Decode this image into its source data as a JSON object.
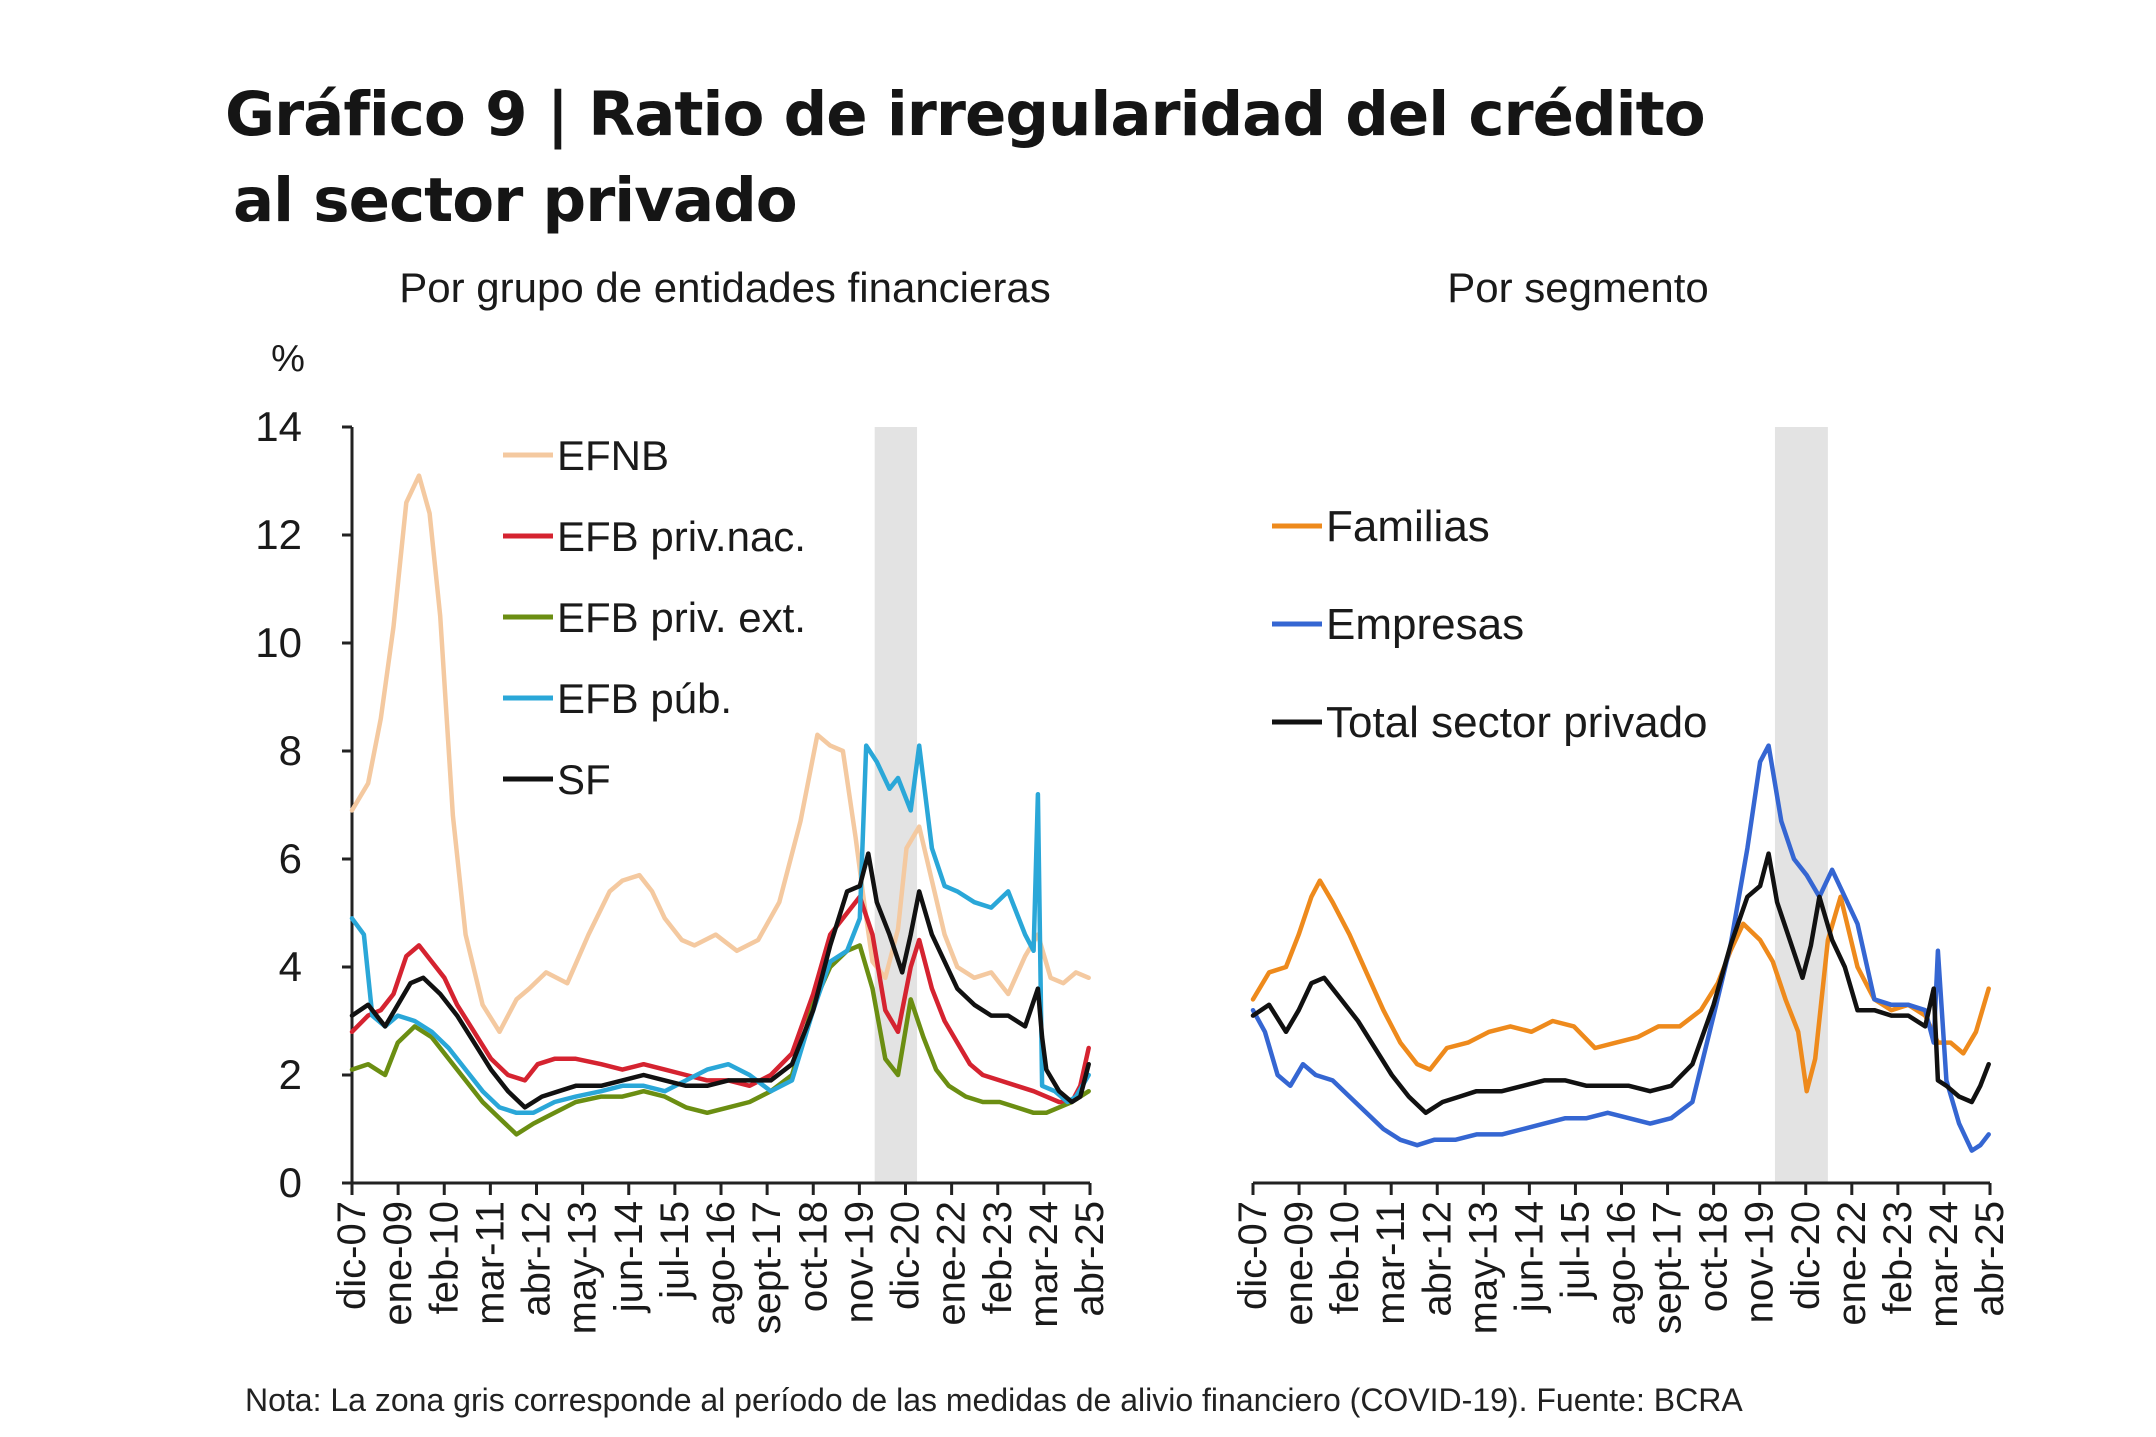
{
  "title_line1": "Gráfico 9 | Ratio de irregularidad del crédito",
  "title_line2": "al sector privado",
  "note": "Nota: La zona gris corresponde al período de las medidas de alivio financiero (COVID-19). Fuente: BCRA",
  "chart_data": [
    {
      "type": "line",
      "subtitle": "Por grupo de entidades financieras",
      "ylabel": "%",
      "ylim": [
        0,
        14
      ],
      "yticks": [
        0,
        2,
        4,
        6,
        8,
        10,
        12,
        14
      ],
      "xlim": [
        "dic-07",
        "abr-25"
      ],
      "x_ticklabels": [
        "dic-07",
        "ene-09",
        "feb-10",
        "mar-11",
        "abr-12",
        "may-13",
        "jun-14",
        "jul-15",
        "ago-16",
        "sept-17",
        "oct-18",
        "nov-19",
        "dic-20",
        "ene-22",
        "feb-23",
        "mar-24",
        "abr-25"
      ],
      "shaded_period": {
        "start": 2020.25,
        "end": 2021.25,
        "color": "#e3e3e3"
      },
      "legend_position": "top-left",
      "series": [
        {
          "name": "EFNB",
          "color": "#f4c9a0",
          "x": [
            2007.92,
            2008.3,
            2008.6,
            2008.9,
            2009.2,
            2009.5,
            2009.75,
            2010.0,
            2010.3,
            2010.6,
            2011.0,
            2011.4,
            2011.8,
            2012.1,
            2012.5,
            2013.0,
            2013.5,
            2014.0,
            2014.3,
            2014.7,
            2015.0,
            2015.3,
            2015.7,
            2016.0,
            2016.5,
            2017.0,
            2017.5,
            2018.0,
            2018.5,
            2018.9,
            2019.2,
            2019.5,
            2019.8,
            2020.0,
            2020.2,
            2020.5,
            2020.8,
            2021.0,
            2021.3,
            2021.6,
            2021.9,
            2022.2,
            2022.6,
            2023.0,
            2023.4,
            2023.8,
            2024.1,
            2024.4,
            2024.7,
            2025.0,
            2025.3
          ],
          "y": [
            6.9,
            7.4,
            8.6,
            10.3,
            12.6,
            13.1,
            12.4,
            10.5,
            6.8,
            4.6,
            3.3,
            2.8,
            3.4,
            3.6,
            3.9,
            3.7,
            4.6,
            5.4,
            5.6,
            5.7,
            5.4,
            4.9,
            4.5,
            4.4,
            4.6,
            4.3,
            4.5,
            5.2,
            6.7,
            8.3,
            8.1,
            8.0,
            6.4,
            5.2,
            4.1,
            3.8,
            4.7,
            6.2,
            6.6,
            5.6,
            4.6,
            4.0,
            3.8,
            3.9,
            3.5,
            4.2,
            4.6,
            3.8,
            3.7,
            3.9,
            3.8
          ]
        },
        {
          "name": "EFB priv.nac.",
          "color": "#d52330",
          "x": [
            2007.92,
            2008.3,
            2008.6,
            2008.9,
            2009.2,
            2009.5,
            2009.8,
            2010.1,
            2010.4,
            2010.8,
            2011.2,
            2011.6,
            2012.0,
            2012.3,
            2012.7,
            2013.2,
            2013.8,
            2014.3,
            2014.8,
            2015.3,
            2015.8,
            2016.3,
            2016.8,
            2017.3,
            2017.8,
            2018.3,
            2018.8,
            2019.2,
            2019.6,
            2019.9,
            2020.2,
            2020.5,
            2020.8,
            2021.1,
            2021.3,
            2021.6,
            2021.9,
            2022.2,
            2022.5,
            2022.8,
            2023.2,
            2023.6,
            2024.0,
            2024.3,
            2024.6,
            2024.9,
            2025.1,
            2025.3
          ],
          "y": [
            2.8,
            3.1,
            3.2,
            3.5,
            4.2,
            4.4,
            4.1,
            3.8,
            3.3,
            2.8,
            2.3,
            2.0,
            1.9,
            2.2,
            2.3,
            2.3,
            2.2,
            2.1,
            2.2,
            2.1,
            2.0,
            1.9,
            1.9,
            1.8,
            2.0,
            2.4,
            3.5,
            4.6,
            5.0,
            5.3,
            4.6,
            3.2,
            2.8,
            4.0,
            4.5,
            3.6,
            3.0,
            2.6,
            2.2,
            2.0,
            1.9,
            1.8,
            1.7,
            1.6,
            1.5,
            1.5,
            1.8,
            2.5
          ]
        },
        {
          "name": "EFB priv. ext.",
          "color": "#6b8e12",
          "x": [
            2007.92,
            2008.3,
            2008.7,
            2009.0,
            2009.4,
            2009.8,
            2010.2,
            2010.6,
            2011.0,
            2011.4,
            2011.8,
            2012.2,
            2012.7,
            2013.2,
            2013.8,
            2014.3,
            2014.8,
            2015.3,
            2015.8,
            2016.3,
            2016.8,
            2017.3,
            2017.8,
            2018.3,
            2018.8,
            2019.2,
            2019.6,
            2019.9,
            2020.2,
            2020.5,
            2020.8,
            2021.1,
            2021.4,
            2021.7,
            2022.0,
            2022.4,
            2022.8,
            2023.2,
            2023.6,
            2024.0,
            2024.3,
            2024.6,
            2024.9,
            2025.1,
            2025.3
          ],
          "y": [
            2.1,
            2.2,
            2.0,
            2.6,
            2.9,
            2.7,
            2.3,
            1.9,
            1.5,
            1.2,
            0.9,
            1.1,
            1.3,
            1.5,
            1.6,
            1.6,
            1.7,
            1.6,
            1.4,
            1.3,
            1.4,
            1.5,
            1.7,
            2.0,
            3.3,
            4.0,
            4.3,
            4.4,
            3.6,
            2.3,
            2.0,
            3.4,
            2.7,
            2.1,
            1.8,
            1.6,
            1.5,
            1.5,
            1.4,
            1.3,
            1.3,
            1.4,
            1.5,
            1.6,
            1.7
          ]
        },
        {
          "name": "EFB púb.",
          "color": "#2aa7d8",
          "x": [
            2007.92,
            2008.2,
            2008.4,
            2008.7,
            2009.0,
            2009.4,
            2009.8,
            2010.2,
            2010.6,
            2011.0,
            2011.4,
            2011.8,
            2012.2,
            2012.7,
            2013.2,
            2013.8,
            2014.3,
            2014.8,
            2015.3,
            2015.8,
            2016.3,
            2016.8,
            2017.3,
            2017.8,
            2018.3,
            2018.8,
            2019.2,
            2019.6,
            2019.9,
            2020.05,
            2020.3,
            2020.6,
            2020.8,
            2021.1,
            2021.3,
            2021.6,
            2021.9,
            2022.2,
            2022.6,
            2023.0,
            2023.4,
            2023.8,
            2024.0,
            2024.1,
            2024.2,
            2024.5,
            2024.8,
            2025.0,
            2025.3
          ],
          "y": [
            4.9,
            4.6,
            3.1,
            2.9,
            3.1,
            3.0,
            2.8,
            2.5,
            2.1,
            1.7,
            1.4,
            1.3,
            1.3,
            1.5,
            1.6,
            1.7,
            1.8,
            1.8,
            1.7,
            1.9,
            2.1,
            2.2,
            2.0,
            1.7,
            1.9,
            3.2,
            4.1,
            4.3,
            4.9,
            8.1,
            7.8,
            7.3,
            7.5,
            6.9,
            8.1,
            6.2,
            5.5,
            5.4,
            5.2,
            5.1,
            5.4,
            4.6,
            4.3,
            7.2,
            1.8,
            1.7,
            1.5,
            1.6,
            2.0
          ]
        },
        {
          "name": "SF",
          "color": "#111111",
          "x": [
            2007.92,
            2008.3,
            2008.7,
            2009.0,
            2009.3,
            2009.6,
            2010.0,
            2010.4,
            2010.8,
            2011.2,
            2011.6,
            2012.0,
            2012.4,
            2012.8,
            2013.2,
            2013.8,
            2014.3,
            2014.8,
            2015.3,
            2015.8,
            2016.3,
            2016.8,
            2017.3,
            2017.8,
            2018.3,
            2018.8,
            2019.2,
            2019.6,
            2019.9,
            2020.1,
            2020.3,
            2020.6,
            2020.9,
            2021.1,
            2021.3,
            2021.6,
            2021.9,
            2022.2,
            2022.6,
            2023.0,
            2023.4,
            2023.8,
            2024.1,
            2024.2,
            2024.3,
            2024.6,
            2024.9,
            2025.1,
            2025.3
          ],
          "y": [
            3.1,
            3.3,
            2.9,
            3.3,
            3.7,
            3.8,
            3.5,
            3.1,
            2.6,
            2.1,
            1.7,
            1.4,
            1.6,
            1.7,
            1.8,
            1.8,
            1.9,
            2.0,
            1.9,
            1.8,
            1.8,
            1.9,
            1.9,
            1.9,
            2.2,
            3.2,
            4.4,
            5.4,
            5.5,
            6.1,
            5.2,
            4.6,
            3.9,
            4.6,
            5.4,
            4.6,
            4.1,
            3.6,
            3.3,
            3.1,
            3.1,
            2.9,
            3.6,
            2.7,
            2.1,
            1.7,
            1.5,
            1.6,
            2.2
          ]
        }
      ]
    },
    {
      "type": "line",
      "subtitle": "Por segmento",
      "ylim": [
        0,
        14
      ],
      "xlim": [
        "dic-07",
        "abr-25"
      ],
      "x_ticklabels": [
        "dic-07",
        "ene-09",
        "feb-10",
        "mar-11",
        "abr-12",
        "may-13",
        "jun-14",
        "jul-15",
        "ago-16",
        "sept-17",
        "oct-18",
        "nov-19",
        "dic-20",
        "ene-22",
        "feb-23",
        "mar-24",
        "abr-25"
      ],
      "shaded_period": {
        "start": 2020.25,
        "end": 2021.5,
        "color": "#e3e3e3"
      },
      "legend_position": "top-left",
      "series": [
        {
          "name": "Familias",
          "color": "#ee8a1c",
          "x": [
            2007.92,
            2008.3,
            2008.7,
            2009.0,
            2009.3,
            2009.5,
            2009.8,
            2010.2,
            2010.6,
            2011.0,
            2011.4,
            2011.8,
            2012.1,
            2012.5,
            2013.0,
            2013.5,
            2014.0,
            2014.5,
            2015.0,
            2015.5,
            2016.0,
            2016.5,
            2017.0,
            2017.5,
            2018.0,
            2018.5,
            2018.9,
            2019.2,
            2019.5,
            2019.9,
            2020.2,
            2020.5,
            2020.8,
            2021.0,
            2021.2,
            2021.5,
            2021.8,
            2022.2,
            2022.6,
            2023.0,
            2023.4,
            2023.8,
            2024.1,
            2024.4,
            2024.7,
            2025.0,
            2025.3
          ],
          "y": [
            3.4,
            3.9,
            4.0,
            4.6,
            5.3,
            5.6,
            5.2,
            4.6,
            3.9,
            3.2,
            2.6,
            2.2,
            2.1,
            2.5,
            2.6,
            2.8,
            2.9,
            2.8,
            3.0,
            2.9,
            2.5,
            2.6,
            2.7,
            2.9,
            2.9,
            3.2,
            3.7,
            4.3,
            4.8,
            4.5,
            4.1,
            3.4,
            2.8,
            1.7,
            2.3,
            4.5,
            5.3,
            4.0,
            3.4,
            3.2,
            3.3,
            3.1,
            2.6,
            2.6,
            2.4,
            2.8,
            3.6
          ]
        },
        {
          "name": "Empresas",
          "color": "#3566d2",
          "x": [
            2007.92,
            2008.2,
            2008.5,
            2008.8,
            2009.1,
            2009.4,
            2009.8,
            2010.2,
            2010.6,
            2011.0,
            2011.4,
            2011.8,
            2012.2,
            2012.7,
            2013.2,
            2013.8,
            2014.3,
            2014.8,
            2015.3,
            2015.8,
            2016.3,
            2016.8,
            2017.3,
            2017.8,
            2018.3,
            2018.8,
            2019.2,
            2019.6,
            2019.9,
            2020.1,
            2020.4,
            2020.7,
            2021.0,
            2021.3,
            2021.6,
            2021.9,
            2022.2,
            2022.6,
            2023.0,
            2023.4,
            2023.8,
            2024.0,
            2024.1,
            2024.3,
            2024.6,
            2024.9,
            2025.1,
            2025.3
          ],
          "y": [
            3.2,
            2.8,
            2.0,
            1.8,
            2.2,
            2.0,
            1.9,
            1.6,
            1.3,
            1.0,
            0.8,
            0.7,
            0.8,
            0.8,
            0.9,
            0.9,
            1.0,
            1.1,
            1.2,
            1.2,
            1.3,
            1.2,
            1.1,
            1.2,
            1.5,
            3.1,
            4.4,
            6.2,
            7.8,
            8.1,
            6.7,
            6.0,
            5.7,
            5.3,
            5.8,
            5.3,
            4.8,
            3.4,
            3.3,
            3.3,
            3.2,
            2.6,
            4.3,
            1.9,
            1.1,
            0.6,
            0.7,
            0.9
          ]
        },
        {
          "name": "Total sector privado",
          "color": "#111111",
          "x": [
            2007.92,
            2008.3,
            2008.7,
            2009.0,
            2009.3,
            2009.6,
            2010.0,
            2010.4,
            2010.8,
            2011.2,
            2011.6,
            2012.0,
            2012.4,
            2012.8,
            2013.2,
            2013.8,
            2014.3,
            2014.8,
            2015.3,
            2015.8,
            2016.3,
            2016.8,
            2017.3,
            2017.8,
            2018.3,
            2018.8,
            2019.2,
            2019.6,
            2019.9,
            2020.1,
            2020.3,
            2020.6,
            2020.9,
            2021.1,
            2021.3,
            2021.6,
            2021.9,
            2022.2,
            2022.6,
            2023.0,
            2023.4,
            2023.8,
            2024.0,
            2024.1,
            2024.3,
            2024.6,
            2024.9,
            2025.1,
            2025.3
          ],
          "y": [
            3.1,
            3.3,
            2.8,
            3.2,
            3.7,
            3.8,
            3.4,
            3.0,
            2.5,
            2.0,
            1.6,
            1.3,
            1.5,
            1.6,
            1.7,
            1.7,
            1.8,
            1.9,
            1.9,
            1.8,
            1.8,
            1.8,
            1.7,
            1.8,
            2.2,
            3.3,
            4.4,
            5.3,
            5.5,
            6.1,
            5.2,
            4.5,
            3.8,
            4.4,
            5.3,
            4.5,
            4.0,
            3.2,
            3.2,
            3.1,
            3.1,
            2.9,
            3.6,
            1.9,
            1.8,
            1.6,
            1.5,
            1.8,
            2.2
          ]
        }
      ]
    }
  ]
}
